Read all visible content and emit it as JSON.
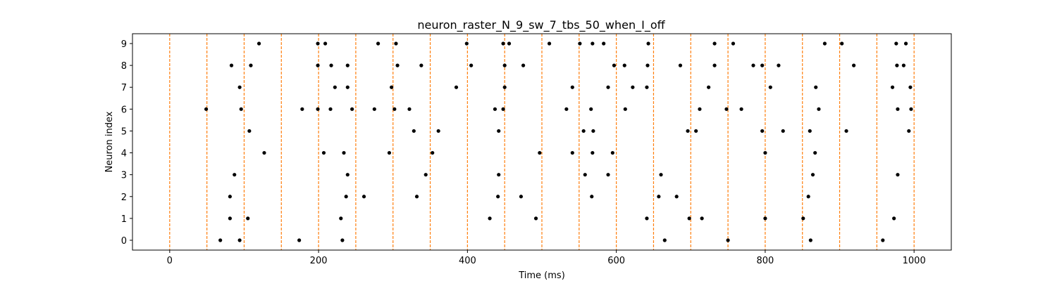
{
  "chart_data": {
    "type": "scatter",
    "title": "neuron_raster_N_9_sw_7_tbs_50_when_I_off",
    "xlabel": "Time (ms)",
    "ylabel": "Neuron index",
    "xlim": [
      -50,
      1050
    ],
    "ylim": [
      -0.45,
      9.45
    ],
    "xticks": [
      0,
      200,
      400,
      600,
      800,
      1000
    ],
    "yticks": [
      0,
      1,
      2,
      3,
      4,
      5,
      6,
      7,
      8,
      9
    ],
    "grid": false,
    "point_color": "#000000",
    "vline_color": "#ff7f0e",
    "vlines": [
      0,
      50,
      100,
      150,
      200,
      250,
      300,
      350,
      400,
      450,
      500,
      550,
      600,
      650,
      700,
      750,
      800,
      850,
      900,
      950,
      1000
    ],
    "spikes": [
      {
        "neuron": 0,
        "times": [
          68,
          94,
          174,
          232,
          665,
          750,
          861,
          958
        ]
      },
      {
        "neuron": 1,
        "times": [
          81,
          105,
          230,
          430,
          492,
          641,
          698,
          715,
          800,
          851,
          973
        ]
      },
      {
        "neuron": 2,
        "times": [
          81,
          237,
          261,
          332,
          441,
          472,
          567,
          657,
          681,
          858
        ]
      },
      {
        "neuron": 3,
        "times": [
          87,
          239,
          344,
          442,
          558,
          589,
          660,
          864,
          978
        ]
      },
      {
        "neuron": 4,
        "times": [
          127,
          207,
          234,
          295,
          353,
          497,
          541,
          568,
          595,
          800,
          867
        ]
      },
      {
        "neuron": 5,
        "times": [
          107,
          361,
          328,
          442,
          556,
          569,
          696,
          707,
          796,
          824,
          860,
          909,
          993
        ]
      },
      {
        "neuron": 6,
        "times": [
          49,
          96,
          178,
          199,
          216,
          245,
          275,
          302,
          322,
          437,
          448,
          533,
          566,
          612,
          712,
          748,
          768,
          872,
          978,
          996
        ]
      },
      {
        "neuron": 7,
        "times": [
          94,
          222,
          239,
          298,
          385,
          450,
          541,
          589,
          622,
          641,
          724,
          807,
          868,
          971,
          995
        ]
      },
      {
        "neuron": 8,
        "times": [
          83,
          109,
          199,
          217,
          239,
          306,
          338,
          405,
          450,
          475,
          597,
          611,
          642,
          686,
          732,
          784,
          796,
          818,
          919,
          977,
          986
        ]
      },
      {
        "neuron": 9,
        "times": [
          120,
          199,
          209,
          280,
          304,
          399,
          448,
          456,
          510,
          551,
          568,
          583,
          643,
          732,
          757,
          880,
          903,
          976,
          989
        ]
      }
    ]
  }
}
